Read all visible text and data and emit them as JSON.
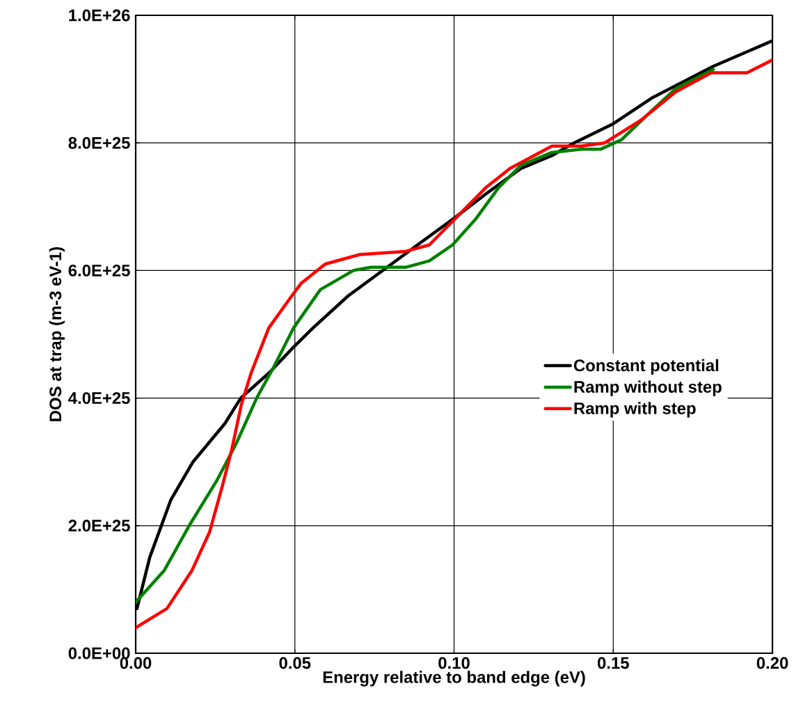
{
  "chart_data": {
    "type": "line",
    "xlabel": "Energy relative to band edge (eV)",
    "ylabel": "DOS at trap (m-3 eV-1)",
    "xlim": [
      0,
      0.2
    ],
    "ylim": [
      0,
      1e+26
    ],
    "xticks": [
      {
        "value": 0,
        "label": "0.00"
      },
      {
        "value": 0.05,
        "label": "0.05"
      },
      {
        "value": 0.1,
        "label": "0.10"
      },
      {
        "value": 0.15,
        "label": "0.15"
      },
      {
        "value": 0.2,
        "label": "0.20"
      }
    ],
    "yticks": [
      {
        "value": 0,
        "label": "0.0E+00"
      },
      {
        "value": 2e+25,
        "label": "2.0E+25"
      },
      {
        "value": 4e+25,
        "label": "4.0E+25"
      },
      {
        "value": 6e+25,
        "label": "6.0E+25"
      },
      {
        "value": 8e+25,
        "label": "8.0E+25"
      },
      {
        "value": 1e+26,
        "label": "1.0E+26"
      }
    ],
    "grid": true,
    "legend": "right",
    "marker": "none",
    "line_style": "solid",
    "series": [
      {
        "name": "Constant potential",
        "color": "#000000",
        "x": [
          0.0004,
          0.0044,
          0.011,
          0.018,
          0.028,
          0.033,
          0.042,
          0.0496,
          0.0557,
          0.0667,
          0.0776,
          0.0885,
          0.0995,
          0.11,
          0.121,
          0.1307,
          0.1377,
          0.15,
          0.162,
          0.1814,
          0.2
        ],
        "values": [
          7e+24,
          1.5e+25,
          2.4e+25,
          3e+25,
          3.6e+25,
          4e+25,
          4.4e+25,
          4.8e+25,
          5.1e+25,
          5.6e+25,
          6e+25,
          6.4e+25,
          6.8e+25,
          7.2e+25,
          7.6e+25,
          7.8e+25,
          8e+25,
          8.3e+25,
          8.7e+25,
          9.2e+25,
          9.6e+25
        ]
      },
      {
        "name": "Ramp without step",
        "color": "#008000",
        "x": [
          0,
          0.009,
          0.0168,
          0.0254,
          0.0317,
          0.038,
          0.0435,
          0.0496,
          0.058,
          0.0684,
          0.0739,
          0.0848,
          0.0922,
          0.0995,
          0.1067,
          0.114,
          0.121,
          0.1307,
          0.14,
          0.146,
          0.1526,
          0.162,
          0.1696,
          0.1814
        ],
        "values": [
          8e+24,
          1.3e+25,
          2e+25,
          2.7e+25,
          3.3e+25,
          4e+25,
          4.5e+25,
          5.1e+25,
          5.7e+25,
          6e+25,
          6.05e+25,
          6.05e+25,
          6.15e+25,
          6.4e+25,
          6.8e+25,
          7.3e+25,
          7.65e+25,
          7.85e+25,
          7.9e+25,
          7.9e+25,
          8.05e+25,
          8.5e+25,
          8.85e+25,
          9.15e+25
        ]
      },
      {
        "name": "Ramp with step",
        "color": "#ff0000",
        "x": [
          0,
          0.0098,
          0.0177,
          0.0232,
          0.0271,
          0.0302,
          0.0332,
          0.0363,
          0.0418,
          0.049,
          0.052,
          0.0595,
          0.0704,
          0.0848,
          0.0922,
          0.1001,
          0.11,
          0.1176,
          0.1307,
          0.14,
          0.1473,
          0.1585,
          0.1696,
          0.1808,
          0.192,
          0.2
        ],
        "values": [
          4e+24,
          7e+24,
          1.3e+25,
          1.9e+25,
          2.6e+25,
          3.2e+25,
          3.9e+25,
          4.4e+25,
          5.1e+25,
          5.6e+25,
          5.8e+25,
          6.1e+25,
          6.25e+25,
          6.3e+25,
          6.4e+25,
          6.8e+25,
          7.3e+25,
          7.6e+25,
          7.95e+25,
          7.95e+25,
          8e+25,
          8.35e+25,
          8.8e+25,
          9.1e+25,
          9.1e+25,
          9.3e+25
        ]
      }
    ]
  }
}
